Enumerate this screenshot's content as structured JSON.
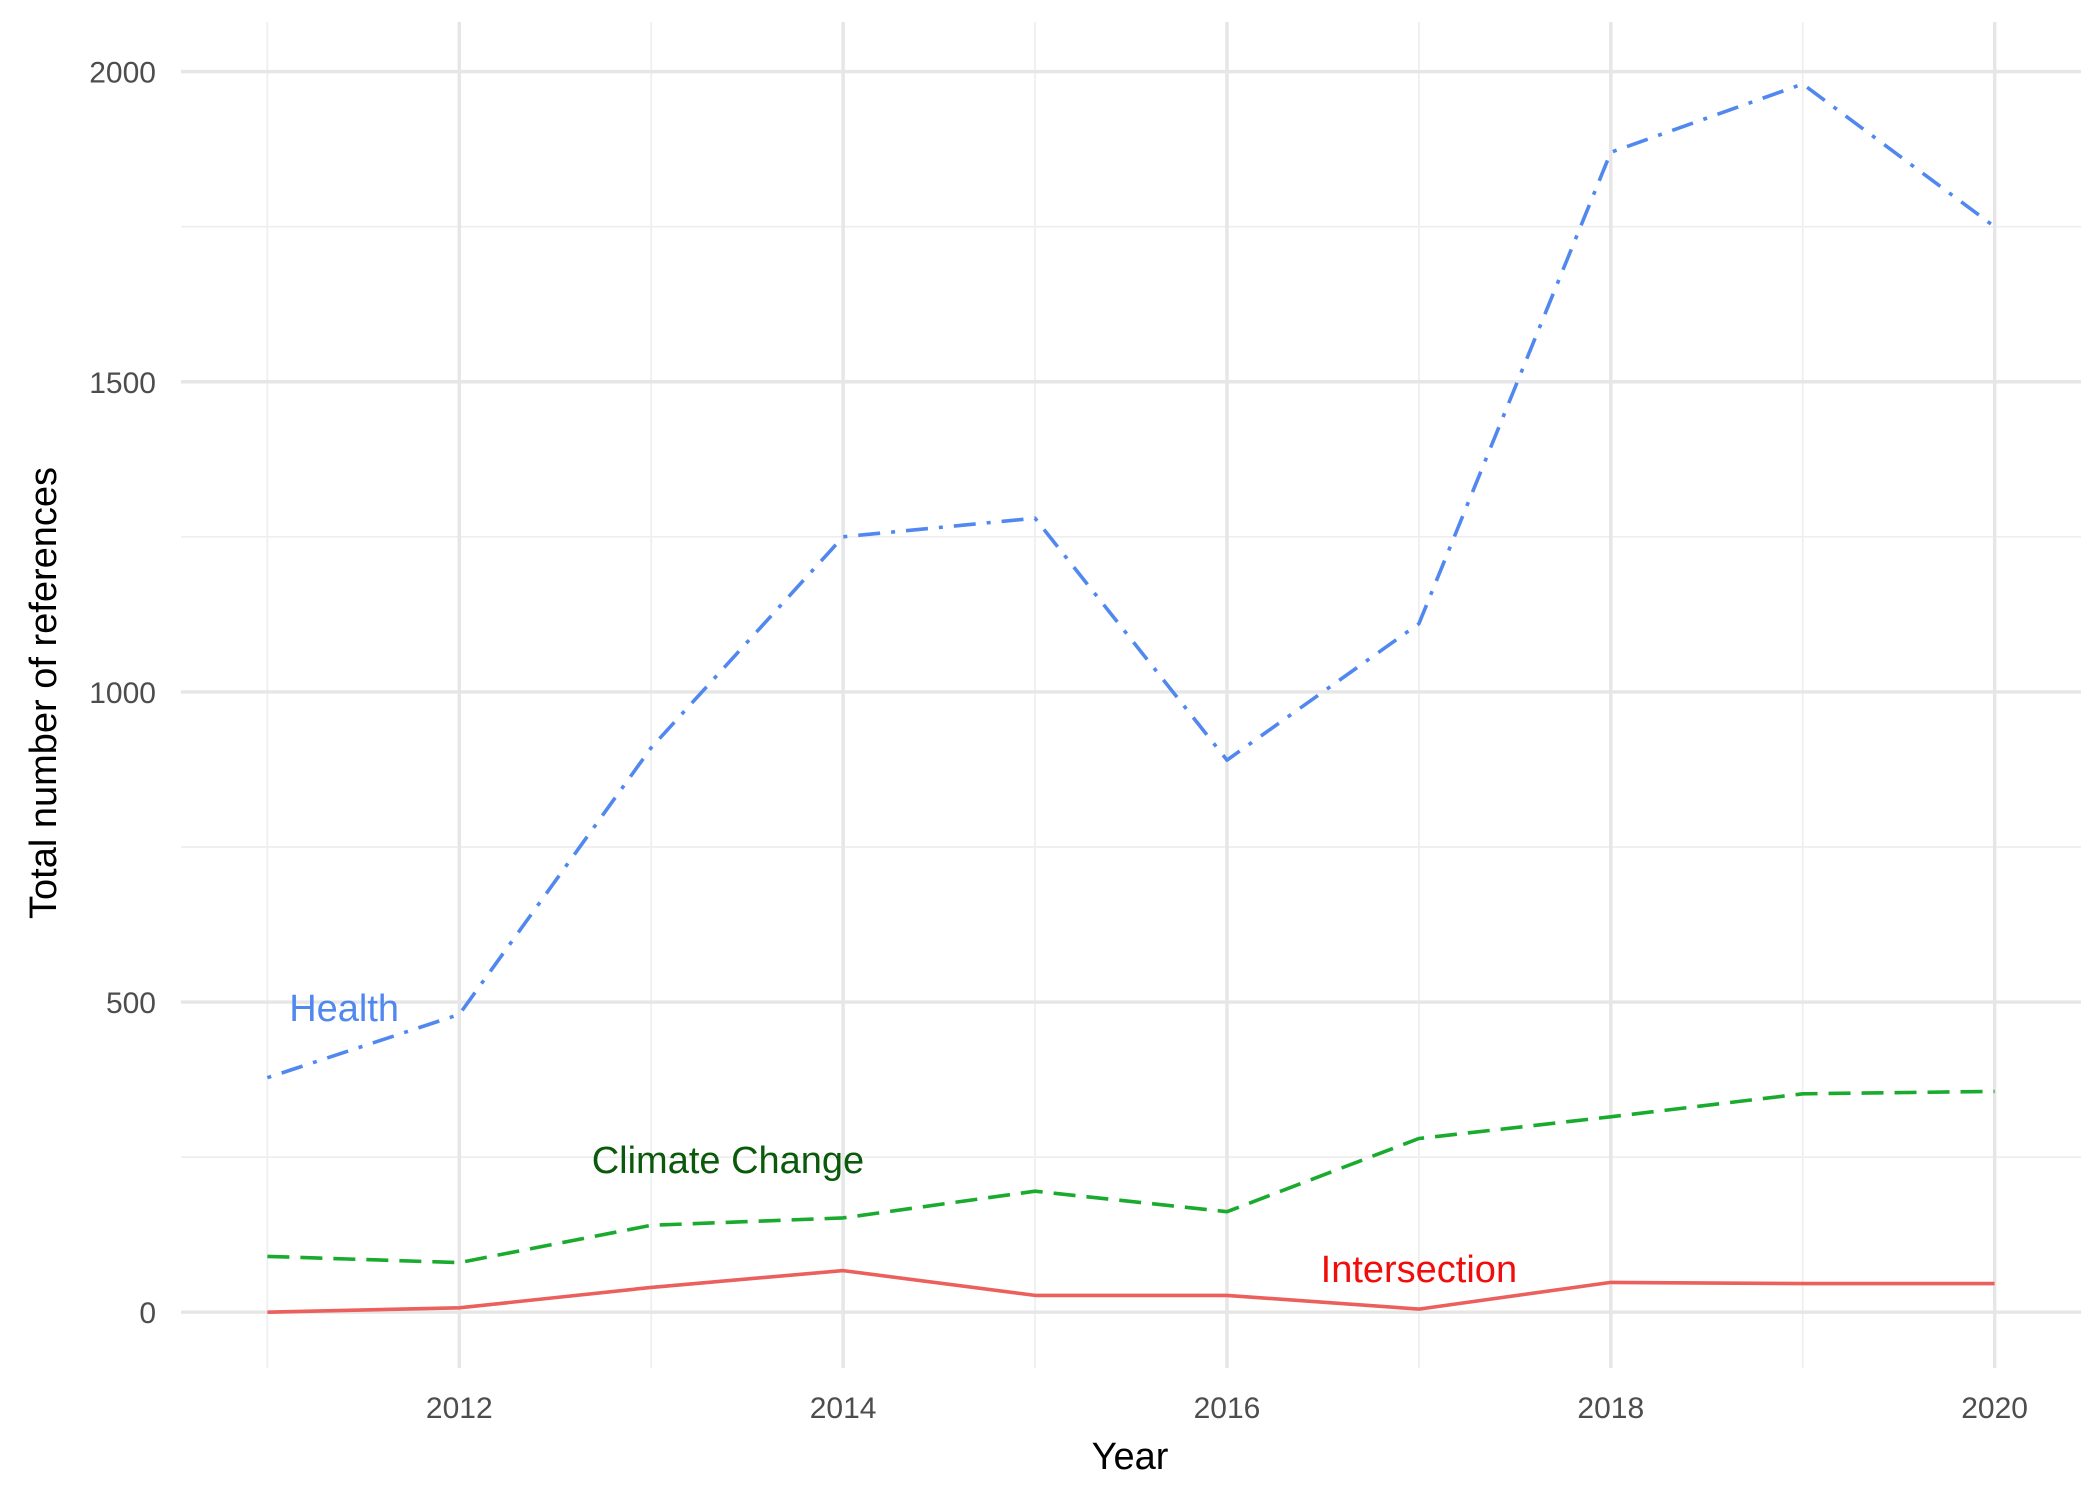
{
  "chart_data": {
    "type": "line",
    "xlabel": "Year",
    "ylabel": "Total number of references",
    "xlim": [
      2010.55,
      2020.45
    ],
    "ylim": [
      -90,
      2080
    ],
    "x_ticks_major": [
      2012,
      2014,
      2016,
      2018,
      2020
    ],
    "x_ticks_minor": [
      2011,
      2013,
      2015,
      2017,
      2019
    ],
    "y_ticks_major": [
      0,
      500,
      1000,
      1500,
      2000
    ],
    "y_ticks_minor": [
      250,
      750,
      1250,
      1750
    ],
    "grid": true,
    "x": [
      2011,
      2012,
      2013,
      2014,
      2015,
      2016,
      2017,
      2018,
      2019,
      2020
    ],
    "series": [
      {
        "name": "Health",
        "color": "#5188f0",
        "dash": "dotdash",
        "values": [
          378,
          480,
          910,
          1250,
          1280,
          890,
          1110,
          1870,
          1980,
          1750
        ],
        "label_at": [
          2011.4,
          490
        ]
      },
      {
        "name": "Climate Change",
        "color": "#1aab2e",
        "label_color": "#0b5a0b",
        "dash": "dashed",
        "values": [
          90,
          80,
          140,
          152,
          195,
          162,
          280,
          315,
          352,
          356
        ],
        "label_at": [
          2013.4,
          245
        ]
      },
      {
        "name": "Intersection",
        "color": "#eb5f5c",
        "label_color": "#f20d0d",
        "dash": "solid",
        "values": [
          0,
          7,
          40,
          67,
          27,
          27,
          5,
          48,
          46,
          46
        ],
        "label_at": [
          2017.0,
          70
        ]
      }
    ]
  }
}
